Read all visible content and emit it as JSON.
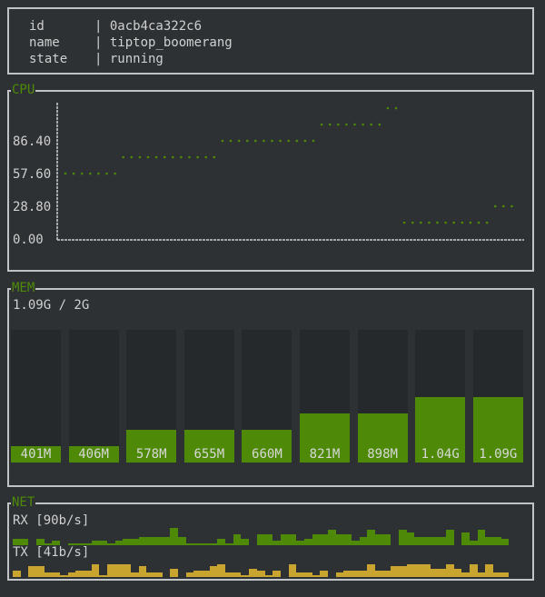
{
  "info": {
    "rows": [
      {
        "key": "id",
        "value": "0acb4ca322c6"
      },
      {
        "key": "name",
        "value": "tiptop_boomerang"
      },
      {
        "key": "state",
        "value": "running"
      }
    ]
  },
  "cpu": {
    "title": "CPU",
    "yticks": [
      "86.40",
      "57.60",
      "28.80",
      "0.00"
    ],
    "color": "#4e8a08",
    "points": [
      57.6,
      57.6,
      57.6,
      57.6,
      57.6,
      57.6,
      57.6,
      72,
      72,
      72,
      72,
      72,
      72,
      72,
      72,
      72,
      72,
      72,
      72,
      86.4,
      86.4,
      86.4,
      86.4,
      86.4,
      86.4,
      86.4,
      86.4,
      86.4,
      86.4,
      86.4,
      86.4,
      100.8,
      100.8,
      100.8,
      100.8,
      100.8,
      100.8,
      100.8,
      100.8,
      115.2,
      115.2,
      14.4,
      14.4,
      14.4,
      14.4,
      14.4,
      14.4,
      14.4,
      14.4,
      14.4,
      14.4,
      14.4,
      28.8,
      28.8,
      28.8
    ]
  },
  "mem": {
    "title": "MEM",
    "summary": "1.09G / 2G",
    "total_mb": 2048,
    "color": "#4e8a08",
    "bars": [
      {
        "mb": 401,
        "label": "401M"
      },
      {
        "mb": 406,
        "label": "406M"
      },
      {
        "mb": 578,
        "label": "578M"
      },
      {
        "mb": 655,
        "label": "655M"
      },
      {
        "mb": 660,
        "label": "660M"
      },
      {
        "mb": 821,
        "label": "821M"
      },
      {
        "mb": 898,
        "label": "898M"
      },
      {
        "mb": 1065,
        "label": "1.04G"
      },
      {
        "mb": 1116,
        "label": "1.09G"
      }
    ]
  },
  "net": {
    "title": "NET",
    "rx_label": "RX [90b/s]",
    "tx_label": "TX [41b/s]",
    "rx_color": "#4e8a08",
    "tx_color": "#c9a530",
    "rx": [
      3,
      3,
      0,
      3,
      1,
      2,
      0,
      1,
      1,
      1,
      2,
      2,
      1,
      2,
      3,
      3,
      4,
      4,
      4,
      4,
      8,
      4,
      1,
      1,
      1,
      1,
      3,
      1,
      5,
      3,
      0,
      5,
      5,
      2,
      5,
      5,
      2,
      3,
      5,
      5,
      7,
      5,
      5,
      2,
      4,
      7,
      5,
      5,
      0,
      7,
      6,
      4,
      4,
      4,
      4,
      7,
      0,
      6,
      2,
      7,
      4,
      4,
      3
    ],
    "tx": [
      3,
      0,
      5,
      5,
      2,
      2,
      1,
      2,
      3,
      3,
      6,
      1,
      6,
      6,
      6,
      2,
      5,
      2,
      2,
      0,
      4,
      0,
      2,
      3,
      3,
      5,
      6,
      2,
      2,
      1,
      4,
      3,
      1,
      3,
      0,
      6,
      2,
      2,
      1,
      3,
      0,
      2,
      3,
      3,
      3,
      6,
      3,
      3,
      5,
      5,
      6,
      6,
      6,
      4,
      4,
      6,
      4,
      2,
      6,
      2,
      6,
      2,
      2
    ]
  }
}
